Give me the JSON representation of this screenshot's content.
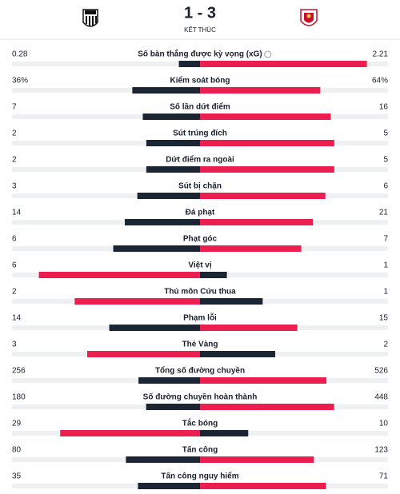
{
  "header": {
    "score": "1 - 3",
    "status": "KẾT THÚC"
  },
  "stats": [
    {
      "name": "Số bàn thắng được kỳ vọng (xG)",
      "home": 0.28,
      "away": 2.21
    },
    {
      "name": "Kiểm soát bóng",
      "home": 36,
      "away": 64,
      "home_label": "36%",
      "away_label": "64%"
    },
    {
      "name": "Số lần dứt điểm",
      "home": 7,
      "away": 16
    },
    {
      "name": "Sút trúng đích",
      "home": 2,
      "away": 5
    },
    {
      "name": "Dứt điểm ra ngoài",
      "home": 2,
      "away": 5
    },
    {
      "name": "Sút bị chặn",
      "home": 3,
      "away": 6
    },
    {
      "name": "Đá phạt",
      "home": 14,
      "away": 21
    },
    {
      "name": "Phạt góc",
      "home": 6,
      "away": 7
    },
    {
      "name": "Việt vị",
      "home": 6,
      "away": 1
    },
    {
      "name": "Thủ môn Cứu thua",
      "home": 2,
      "away": 1
    },
    {
      "name": "Phạm lỗi",
      "home": 14,
      "away": 15
    },
    {
      "name": "Thẻ Vàng",
      "home": 3,
      "away": 2
    },
    {
      "name": "Tổng số đường chuyền",
      "home": 256,
      "away": 526
    },
    {
      "name": "Số đường chuyền hoàn thành",
      "home": 180,
      "away": 448
    },
    {
      "name": "Tắc bóng",
      "home": 29,
      "away": 10
    },
    {
      "name": "Tấn công",
      "home": 80,
      "away": 123
    },
    {
      "name": "Tấn công nguy hiểm",
      "home": 35,
      "away": 71
    }
  ]
}
